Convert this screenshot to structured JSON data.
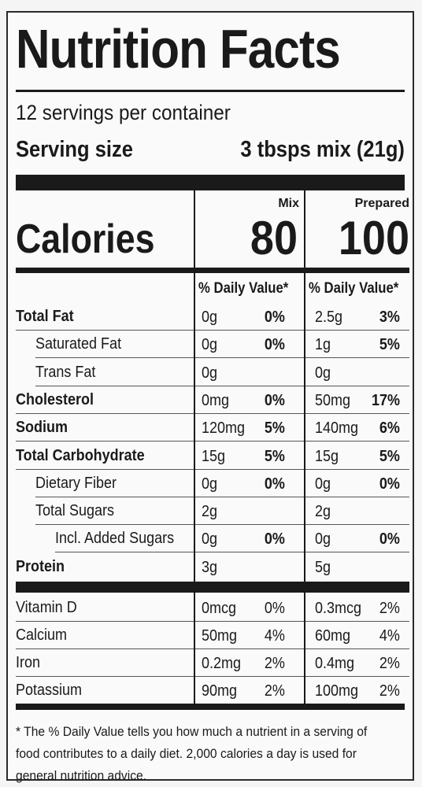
{
  "title": "Nutrition Facts",
  "servings_per_container": "12 servings per container",
  "serving_size_label": "Serving size",
  "serving_size_value": "3 tbsps mix (21g)",
  "columns": [
    {
      "header": "Mix",
      "calories": "80",
      "dv_header": "% Daily Value*"
    },
    {
      "header": "Prepared",
      "calories": "100",
      "dv_header": "% Daily Value*"
    }
  ],
  "calories_label": "Calories",
  "nutrients": [
    {
      "name": "Total Fat",
      "bold": true,
      "indent": 0,
      "mix_amt": "0g",
      "mix_pct": "0%",
      "prep_amt": "2.5g",
      "prep_pct": "3%",
      "pct_bold": true
    },
    {
      "name": "Saturated Fat",
      "bold": false,
      "indent": 1,
      "mix_amt": "0g",
      "mix_pct": "0%",
      "prep_amt": "1g",
      "prep_pct": "5%",
      "pct_bold": true
    },
    {
      "name": "Trans Fat",
      "bold": false,
      "indent": 1,
      "mix_amt": "0g",
      "mix_pct": "",
      "prep_amt": "0g",
      "prep_pct": "",
      "pct_bold": true
    },
    {
      "name": "Cholesterol",
      "bold": true,
      "indent": 0,
      "mix_amt": "0mg",
      "mix_pct": "0%",
      "prep_amt": "50mg",
      "prep_pct": "17%",
      "pct_bold": true
    },
    {
      "name": "Sodium",
      "bold": true,
      "indent": 0,
      "mix_amt": "120mg",
      "mix_pct": "5%",
      "prep_amt": "140mg",
      "prep_pct": "6%",
      "pct_bold": true
    },
    {
      "name": "Total Carbohydrate",
      "bold": true,
      "indent": 0,
      "mix_amt": "15g",
      "mix_pct": "5%",
      "prep_amt": "15g",
      "prep_pct": "5%",
      "pct_bold": true
    },
    {
      "name": "Dietary Fiber",
      "bold": false,
      "indent": 1,
      "mix_amt": "0g",
      "mix_pct": "0%",
      "prep_amt": "0g",
      "prep_pct": "0%",
      "pct_bold": true
    },
    {
      "name": "Total Sugars",
      "bold": false,
      "indent": 1,
      "mix_amt": "2g",
      "mix_pct": "",
      "prep_amt": "2g",
      "prep_pct": "",
      "pct_bold": true
    },
    {
      "name": "Incl. Added Sugars",
      "bold": false,
      "indent": 2,
      "mix_amt": "0g",
      "mix_pct": "0%",
      "prep_amt": "0g",
      "prep_pct": "0%",
      "pct_bold": true
    },
    {
      "name": "Protein",
      "bold": true,
      "indent": 0,
      "mix_amt": "3g",
      "mix_pct": "",
      "prep_amt": "5g",
      "prep_pct": "",
      "pct_bold": true
    }
  ],
  "vitamins": [
    {
      "name": "Vitamin D",
      "mix_amt": "0mcg",
      "mix_pct": "0%",
      "prep_amt": "0.3mcg",
      "prep_pct": "2%"
    },
    {
      "name": "Calcium",
      "mix_amt": "50mg",
      "mix_pct": "4%",
      "prep_amt": "60mg",
      "prep_pct": "4%"
    },
    {
      "name": "Iron",
      "mix_amt": "0.2mg",
      "mix_pct": "2%",
      "prep_amt": "0.4mg",
      "prep_pct": "2%"
    },
    {
      "name": "Potassium",
      "mix_amt": "90mg",
      "mix_pct": "2%",
      "prep_amt": "100mg",
      "prep_pct": "2%"
    }
  ],
  "footnote": "* The % Daily Value tells you how much a nutrient in a serving of food contributes to a daily diet. 2,000 calories a day is used for general nutrition advice."
}
